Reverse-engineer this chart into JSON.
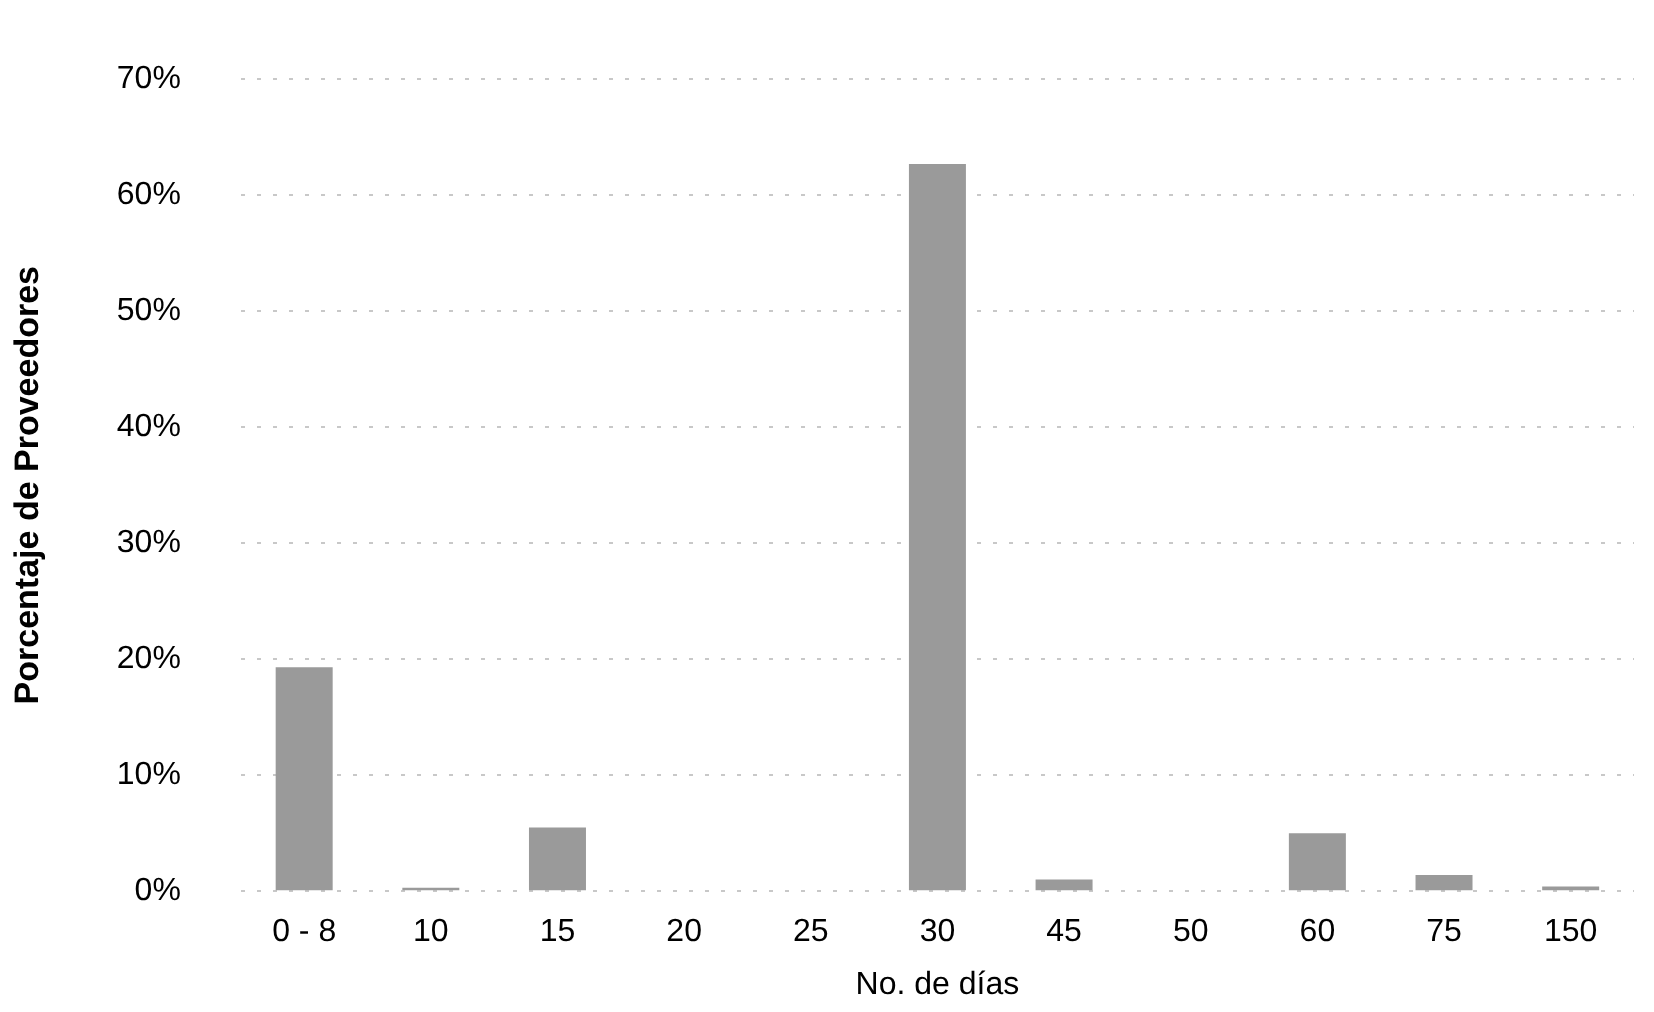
{
  "chart_data": {
    "type": "bar",
    "xlabel": "No. de días",
    "ylabel": "Porcentaje de Proveedores",
    "categories": [
      "0 - 8",
      "10",
      "15",
      "20",
      "25",
      "30",
      "45",
      "50",
      "60",
      "75",
      "150"
    ],
    "values": [
      19.3,
      0.3,
      5.5,
      0,
      0,
      62.7,
      1,
      0,
      5,
      1.4,
      0.4
    ],
    "color": "#9a9a9a",
    "ylim": [
      0,
      70
    ],
    "yticks": [
      {
        "value": 0,
        "label": "0%"
      },
      {
        "value": 10,
        "label": "10%"
      },
      {
        "value": 20,
        "label": "20%"
      },
      {
        "value": 30,
        "label": "30%"
      },
      {
        "value": 40,
        "label": "40%"
      },
      {
        "value": 50,
        "label": "50%"
      },
      {
        "value": 60,
        "label": "60%"
      },
      {
        "value": 70,
        "label": "70%"
      }
    ],
    "grid": "y",
    "legend": false
  }
}
